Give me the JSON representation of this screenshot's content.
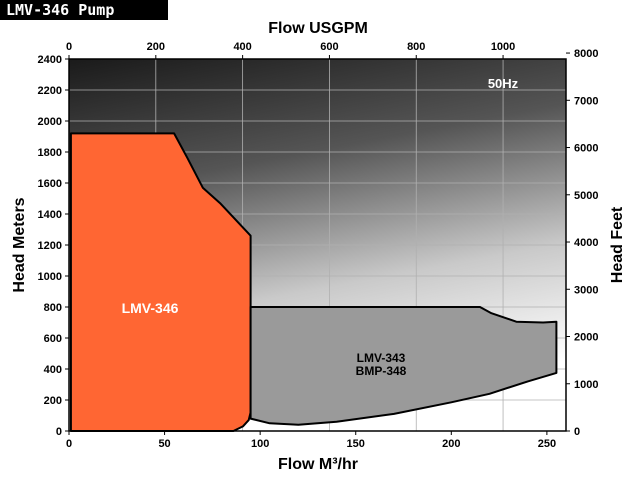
{
  "header": {
    "title": "LMV-346 Pump"
  },
  "chart_data": {
    "type": "area",
    "title": "LMV-346 Pump",
    "frequency_label": "50Hz",
    "axes": {
      "x_bottom": {
        "label": "Flow M³/hr",
        "range": [
          0,
          260
        ],
        "ticks": [
          0,
          50,
          100,
          150,
          200,
          250
        ]
      },
      "x_top": {
        "label": "Flow USGPM",
        "range": [
          0,
          1145
        ],
        "ticks": [
          0,
          200,
          400,
          600,
          800,
          1000
        ]
      },
      "y_left": {
        "label": "Head Meters",
        "range": [
          0,
          2400
        ],
        "ticks": [
          0,
          200,
          400,
          600,
          800,
          1000,
          1200,
          1400,
          1600,
          1800,
          2000,
          2200,
          2400
        ]
      },
      "y_right": {
        "label": "Head Feet",
        "range": [
          0,
          7874
        ],
        "ticks": [
          0,
          1000,
          2000,
          3000,
          4000,
          5000,
          6000,
          7000,
          8000
        ]
      }
    },
    "grid": true,
    "series": [
      {
        "name": "LMV-346",
        "color": "#ff6633",
        "points": [
          [
            1,
            0
          ],
          [
            1,
            1920
          ],
          [
            55,
            1920
          ],
          [
            62,
            1760
          ],
          [
            70,
            1570
          ],
          [
            79,
            1470
          ],
          [
            95,
            1260
          ],
          [
            95,
            120
          ],
          [
            94,
            70
          ],
          [
            91,
            30
          ],
          [
            86,
            0
          ]
        ]
      },
      {
        "name": "LMV-343 BMP-348",
        "color": "#9a9a9a",
        "points": [
          [
            95,
            800
          ],
          [
            215,
            800
          ],
          [
            221,
            760
          ],
          [
            234,
            705
          ],
          [
            248,
            700
          ],
          [
            255,
            705
          ],
          [
            255,
            375
          ],
          [
            240,
            320
          ],
          [
            220,
            240
          ],
          [
            200,
            185
          ],
          [
            170,
            110
          ],
          [
            140,
            60
          ],
          [
            120,
            40
          ],
          [
            105,
            50
          ],
          [
            95,
            80
          ]
        ]
      }
    ]
  }
}
